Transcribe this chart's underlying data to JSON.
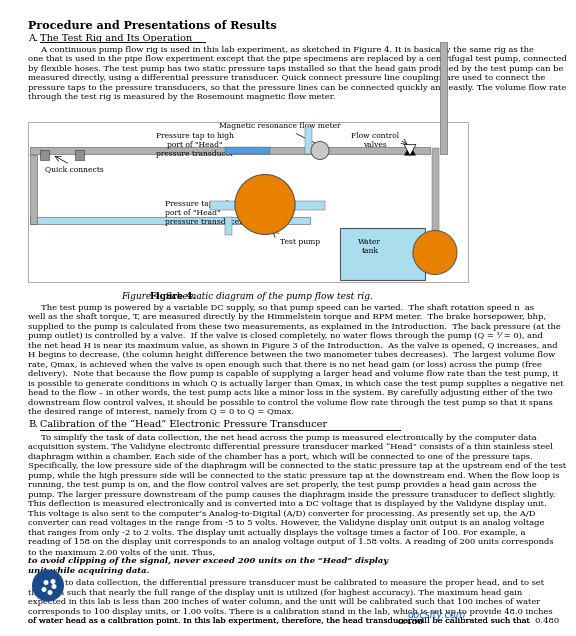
{
  "title": "Procedure and Presentations of Results",
  "bg_color": "#ffffff",
  "text_color": "#000000",
  "link_color": "#1a5cc8",
  "para_a": "A continuous pump flow rig is used in this lab experiment, as sketched in Figure 4. It is basically the same rig as the one that is used in the pipe flow experiment except that the pipe specimens are replaced by a centrifugal test pump, connected by flexible hoses. The test pump has two static pressure taps installed so that the head gain produced by the test pump can be measured directly, using a differential pressure transducer. Quick connect pressure line couplings are used to connect the pressure taps to the pressure transducers, so that the pressure lines can be connected quickly and easily. The volume flow rate through the test rig is measured by the Rosemount magnetic flow meter.",
  "para_pump": "The test pump is powered by a variable DC supply, so that pump speed can be varied.  The shaft rotation speed n  as well as the shaft torque, T, are measured directly by the Himmelstein torque and RPM meter.  The brake horsepower, bhp, supplied to the pump is calculated from these two measurements, as explained in the Introduction.  The back pressure (at the pump outlet) is controlled by a valve.  If the valve is closed completely, no water flows through the pump (Q = ¹⁄ⁿ = 0), and the net head H is near its maximum value, as shown in Figure 3 of the Introduction.  As the valve is opened, Q increases, and H begins to decrease, (the column height difference between the two manometer tubes decreases).  The largest volume flow rate, Qmax, is achieved when the valve is open enough such that there is no net head gain (or loss) across the pump (free delivery).  Note that because the flow pump is capable of supplying a larger head and volume flow rate than the test pump, it is possible to generate conditions in which Q is actually larger than Qmax, in which case the test pump supplies a negative net head to the flow – in other words, the test pump acts like a minor loss in the system. By carefully adjusting either of the two downstream flow control valves, it should be possible to control the volume flow rate through the test pump so that it spans the desired range of interest, namely from Q = 0 to Q = Qmax.",
  "sec_b_text1": "To simplify the task of data collection, the net head across the pump is measured electronically by the computer data acquisition system. The Validyne electronic differential pressure transducer marked “Head” consists of a thin stainless steel diaphragm within a chamber. Each side of the chamber has a port, which will be connected to one of the pressure taps. Specifically, the low pressure side of the diaphragm will be connected to the static pressure tap at the upstream end of the test pump, while the high pressure side will be connected to the static pressure tap at the downstream end. When the flow loop is running, the test pump is on, and the flow control valves are set properly, the test pump provides a head gain across the pump. The larger pressure downstream of the pump causes the diaphragm inside the pressure transducer to deflect slightly. This deflection is measured electronically and is converted into a DC voltage that is displayed by the Validyne display unit. This voltage is also sent to the computer’s Analog-to-Digital (A/D) converter for processing. As presently set up, the A/D converter can read voltages in the range from -5 to 5 volts. However, the Validyne display unit output is an analog voltage that ranges from only -2 to 2 volts. The display unit actually displays the voltage times a factor of 100. For example, a reading of 158 on the display unit corresponds to an analog voltage output of 1.58 volts. A reading of 200 units corresponds to the maximum 2.00 volts of the unit. Thus, to avoid clipping of the signal, never exceed 200 units on the “Head” display unit while acquiring data.",
  "sec_b_text2": "Prior to data collection, the differential pressure transducer must be calibrated to measure the proper head, and to set the span such that nearly the full range of the display unit is utilized (for highest accuracy). The maximum head gain expected in this lab is less than 200 inches of water column, and the unit will be calibrated such that 100 inches of water corresponds to 100 display units, or 1.00 volts. There is a calibration stand in the lab, which is set up to provide 48.0 inches of water head as a calibration point. In this lab experiment, therefore, the head transducer will be calibrated such that 0.480"
}
